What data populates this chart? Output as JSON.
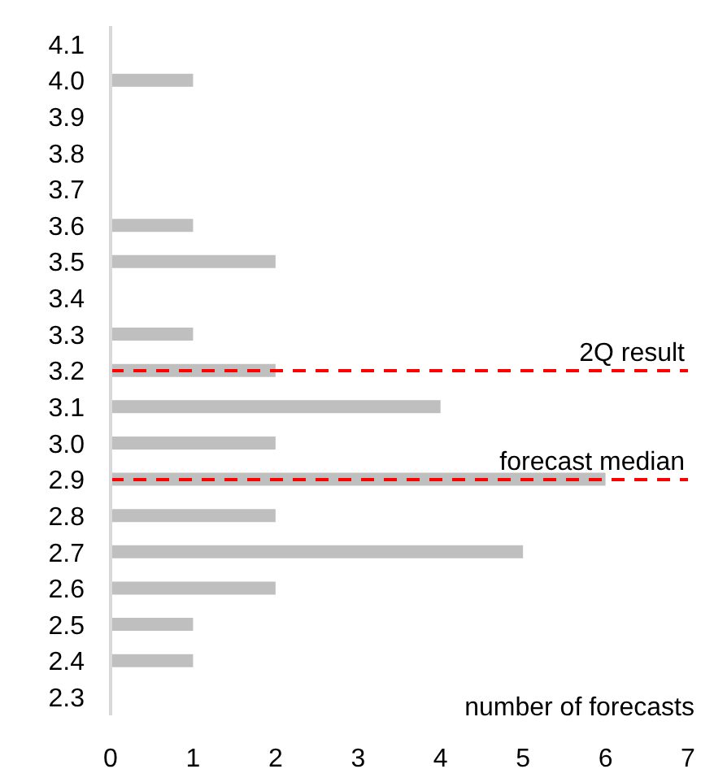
{
  "chart_data": {
    "type": "bar",
    "orientation": "horizontal",
    "xlabel": "number of forecasts",
    "categories": [
      "4.1",
      "4.0",
      "3.9",
      "3.8",
      "3.7",
      "3.6",
      "3.5",
      "3.4",
      "3.3",
      "3.2",
      "3.1",
      "3.0",
      "2.9",
      "2.8",
      "2.7",
      "2.6",
      "2.5",
      "2.4",
      "2.3"
    ],
    "values": [
      0,
      1,
      0,
      0,
      0,
      1,
      2,
      0,
      1,
      2,
      4,
      2,
      6,
      2,
      5,
      2,
      1,
      1,
      0
    ],
    "color": "#bfbfbf",
    "xlim": [
      0,
      7
    ],
    "xticks": [
      0,
      1,
      2,
      3,
      4,
      5,
      6,
      7
    ],
    "grid": false,
    "legend": false,
    "ref_lines": [
      {
        "axis": "y",
        "value": "3.2",
        "label": "2Q result",
        "color": "#ff0000",
        "line_style": "dashed"
      },
      {
        "axis": "y",
        "value": "2.9",
        "label": "forecast median",
        "color": "#ff0000",
        "line_style": "dashed"
      }
    ]
  }
}
